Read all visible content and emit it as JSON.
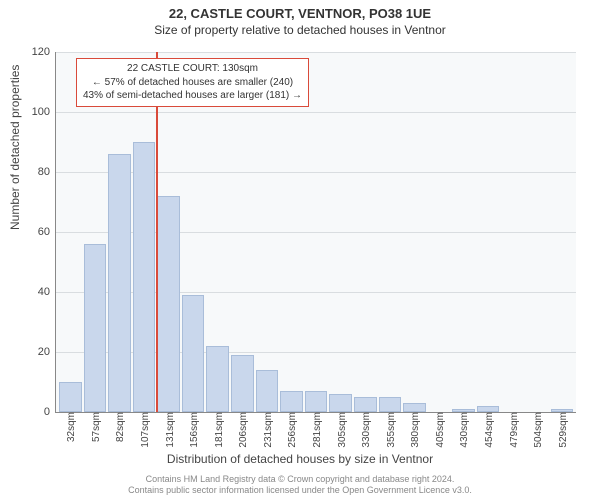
{
  "chart": {
    "type": "histogram",
    "title_line1": "22, CASTLE COURT, VENTNOR, PO38 1UE",
    "title_line2": "Size of property relative to detached houses in Ventnor",
    "title_fontsize": 13,
    "subtitle_fontsize": 12,
    "ylabel": "Number of detached properties",
    "xlabel": "Distribution of detached houses by size in Ventnor",
    "background_color": "#f7f9fa",
    "grid_color": "#d9dde0",
    "bar_fill": "#c9d7ec",
    "bar_border": "#a9bdd9",
    "refline_color": "#d94a3a",
    "refline_x_index": 4,
    "ylim": [
      0,
      120
    ],
    "ytick_step": 20,
    "yticks": [
      "0",
      "20",
      "40",
      "60",
      "80",
      "100",
      "120"
    ],
    "xticks": [
      "32sqm",
      "57sqm",
      "82sqm",
      "107sqm",
      "131sqm",
      "156sqm",
      "181sqm",
      "206sqm",
      "231sqm",
      "256sqm",
      "281sqm",
      "305sqm",
      "330sqm",
      "355sqm",
      "380sqm",
      "405sqm",
      "430sqm",
      "454sqm",
      "479sqm",
      "504sqm",
      "529sqm"
    ],
    "values": [
      10,
      56,
      86,
      90,
      72,
      39,
      22,
      19,
      14,
      7,
      7,
      6,
      5,
      5,
      3,
      0,
      1,
      2,
      0,
      0,
      1
    ],
    "annotation": {
      "line1": "22 CASTLE COURT: 130sqm",
      "line2": "← 57% of detached houses are smaller (240)",
      "line3": "43% of semi-detached houses are larger (181) →",
      "fontsize": 10
    },
    "footer": {
      "line1": "Contains HM Land Registry data © Crown copyright and database right 2024.",
      "line2": "Contains public sector information licensed under the Open Government Licence v3.0.",
      "color": "#888888"
    }
  }
}
